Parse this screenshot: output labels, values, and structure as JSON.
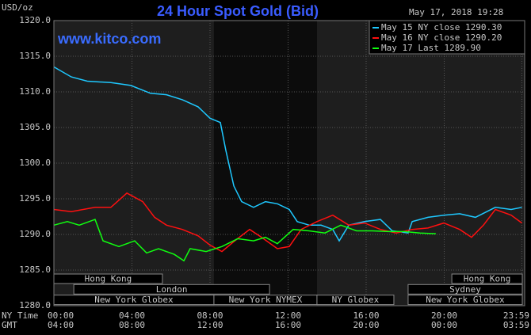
{
  "chart_data": {
    "type": "line",
    "title": "24 Hour Spot Gold (Bid)",
    "watermark": "www.kitco.com",
    "timestamp": "May 17, 2018 19:28",
    "ylabel": "USD/oz",
    "xlabel": "NY Time",
    "xlabel_gmt": "GMT",
    "xlim": [
      0,
      24
    ],
    "ylim": [
      1280,
      1320
    ],
    "grid": true,
    "legend": "top-right",
    "yticks": [
      {
        "value": 1280,
        "label": "1280.0"
      },
      {
        "value": 1285,
        "label": "1285.0"
      },
      {
        "value": 1290,
        "label": "1290.0"
      },
      {
        "value": 1295,
        "label": "1295.0"
      },
      {
        "value": 1300,
        "label": "1300.0"
      },
      {
        "value": 1305,
        "label": "1305.0"
      },
      {
        "value": 1310,
        "label": "1310.0"
      },
      {
        "value": 1315,
        "label": "1315.0"
      },
      {
        "value": 1320,
        "label": "1320.0"
      }
    ],
    "xticks": [
      {
        "value": 0,
        "label": "00:00"
      },
      {
        "value": 4,
        "label": "04:00"
      },
      {
        "value": 8,
        "label": "08:00"
      },
      {
        "value": 12,
        "label": "12:00"
      },
      {
        "value": 16,
        "label": "16:00"
      },
      {
        "value": 20,
        "label": "20:00"
      },
      {
        "value": 23.98,
        "label": "23:59"
      }
    ],
    "xticks_gmt": [
      {
        "value": 0,
        "label": "04:00"
      },
      {
        "value": 4,
        "label": "08:00"
      },
      {
        "value": 8,
        "label": "12:00"
      },
      {
        "value": 12,
        "label": "16:00"
      },
      {
        "value": 16,
        "label": "20:00"
      },
      {
        "value": 20,
        "label": "00:00"
      },
      {
        "value": 23.98,
        "label": "03:59"
      }
    ],
    "highlight": {
      "start": 8.2,
      "end": 13.48
    },
    "sessions": [
      {
        "label": "Hong Kong",
        "start": 0,
        "end": 5.56,
        "row": 1
      },
      {
        "label": "Hong Kong",
        "start": 20.39,
        "end": 24,
        "row": 1
      },
      {
        "label": "London",
        "start": 1.02,
        "end": 11.05,
        "row": 2
      },
      {
        "label": "Sydney",
        "start": 18.15,
        "end": 24,
        "row": 2
      },
      {
        "label": "New York Globex",
        "start": 0,
        "end": 8.2,
        "row": 3
      },
      {
        "label": "New York NYMEX",
        "start": 8.2,
        "end": 13.48,
        "row": 3
      },
      {
        "label": "NY Globex",
        "start": 13.48,
        "end": 17.42,
        "row": 3
      },
      {
        "label": "New York Globex",
        "start": 18.15,
        "end": 24,
        "row": 3
      }
    ],
    "series": [
      {
        "name": "May 15 NY close 1290.30",
        "color": "#1ec8ff",
        "x": [
          0,
          0.89,
          1.71,
          2.92,
          3.94,
          4.95,
          5.77,
          6.58,
          7.39,
          8.0,
          8.53,
          8.81,
          9.22,
          9.62,
          10.23,
          10.84,
          11.45,
          12.06,
          12.47,
          13.08,
          13.69,
          14.29,
          14.62,
          15.11,
          15.92,
          16.73,
          17.34,
          18.15,
          18.36,
          19.17,
          19.98,
          20.79,
          21.6,
          22.62,
          23.43,
          23.98
        ],
        "values": [
          1313.5,
          1312.1,
          1311.5,
          1311.3,
          1310.9,
          1309.8,
          1309.6,
          1308.9,
          1307.9,
          1306.3,
          1305.7,
          1301.8,
          1296.8,
          1294.6,
          1293.8,
          1294.6,
          1294.3,
          1293.5,
          1291.8,
          1291.3,
          1291.3,
          1290.7,
          1289.1,
          1291.3,
          1291.8,
          1292.1,
          1290.5,
          1290.2,
          1291.8,
          1292.4,
          1292.7,
          1292.9,
          1292.4,
          1293.8,
          1293.5,
          1293.8
        ]
      },
      {
        "name": "May 16 NY close 1290.20",
        "color": "#ff1010",
        "x": [
          0,
          0.89,
          2.11,
          2.92,
          3.74,
          4.55,
          5.16,
          5.77,
          6.58,
          7.39,
          8.0,
          8.61,
          9.22,
          10.03,
          10.64,
          11.45,
          12.06,
          12.67,
          13.48,
          14.29,
          15.11,
          15.92,
          16.73,
          17.54,
          18.36,
          19.17,
          19.98,
          20.79,
          21.4,
          22.01,
          22.62,
          23.43,
          23.98
        ],
        "values": [
          1293.5,
          1293.2,
          1293.8,
          1293.8,
          1295.8,
          1294.6,
          1292.4,
          1291.3,
          1290.7,
          1289.8,
          1288.5,
          1287.6,
          1289.0,
          1290.7,
          1289.6,
          1288.0,
          1288.3,
          1290.7,
          1291.8,
          1292.7,
          1291.3,
          1291.6,
          1290.7,
          1290.2,
          1290.7,
          1290.9,
          1291.6,
          1290.7,
          1289.6,
          1291.3,
          1293.5,
          1292.7,
          1291.6
        ]
      },
      {
        "name": "May 17 Last 1289.90",
        "color": "#10ff10",
        "x": [
          0,
          0.69,
          1.3,
          2.11,
          2.52,
          3.33,
          4.14,
          4.75,
          5.36,
          6.17,
          6.66,
          6.98,
          7.8,
          8.61,
          9.42,
          10.23,
          10.84,
          11.45,
          12.26,
          13.08,
          13.89,
          14.7,
          15.51,
          16.32,
          17.14,
          17.95,
          18.76,
          19.57
        ],
        "values": [
          1291.3,
          1291.8,
          1291.3,
          1292.1,
          1289.1,
          1288.3,
          1289.1,
          1287.4,
          1288.0,
          1287.2,
          1286.3,
          1288.0,
          1287.6,
          1288.3,
          1289.4,
          1289.1,
          1289.6,
          1288.7,
          1290.7,
          1290.5,
          1290.2,
          1291.3,
          1290.5,
          1290.5,
          1290.4,
          1290.4,
          1290.2,
          1290.1
        ]
      }
    ]
  }
}
